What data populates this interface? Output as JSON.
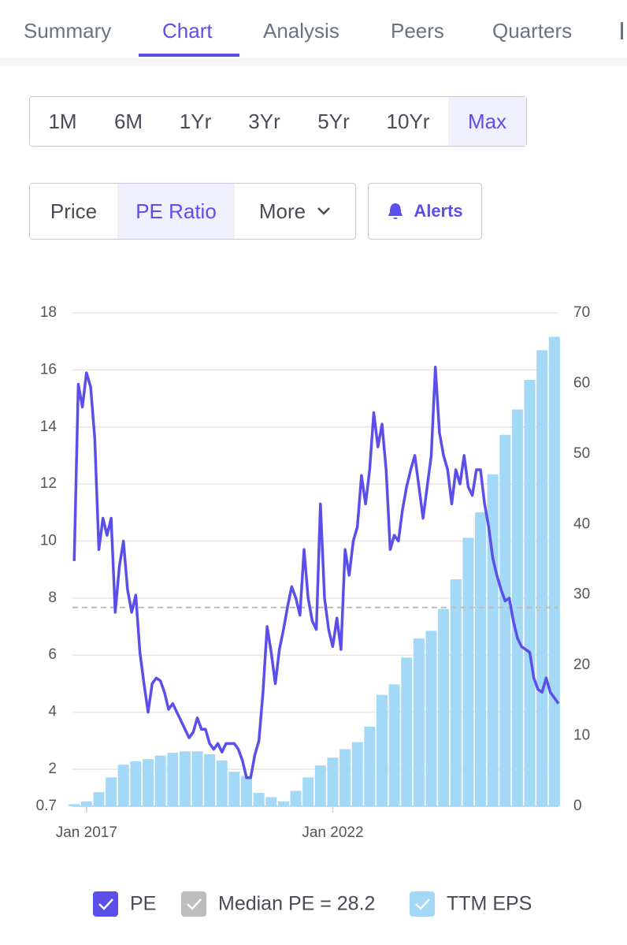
{
  "tabs": [
    "Summary",
    "Chart",
    "Analysis",
    "Peers",
    "Quarters"
  ],
  "ranges": [
    "1M",
    "6M",
    "1Yr",
    "3Yr",
    "5Yr",
    "10Yr",
    "Max"
  ],
  "metrics": [
    "Price",
    "PE Ratio",
    "More"
  ],
  "alerts": "Alerts",
  "chart_data": {
    "type": "combo",
    "xlim": [
      "2016-09",
      "2026-08"
    ],
    "xticks": [
      {
        "value": "2017-01",
        "label": "Jan 2017"
      },
      {
        "value": "2022-01",
        "label": "Jan 2022"
      }
    ],
    "ylim": [
      0.7,
      18
    ],
    "yticks": [
      0.7,
      2,
      4,
      6,
      8,
      10,
      12,
      14,
      16,
      18
    ],
    "y2lim": [
      0,
      70
    ],
    "y2ticks": [
      0,
      10,
      20,
      30,
      40,
      50,
      60,
      70
    ],
    "grid": true,
    "series": [
      {
        "name": "PE",
        "type": "line",
        "color": "#5b4fe9",
        "x": [
          "2016-10",
          "2016-11",
          "2016-12",
          "2017-01",
          "2017-02",
          "2017-03",
          "2017-04",
          "2017-05",
          "2017-06",
          "2017-07",
          "2017-08",
          "2017-09",
          "2017-10",
          "2017-11",
          "2017-12",
          "2018-01",
          "2018-02",
          "2018-03",
          "2018-04",
          "2018-05",
          "2018-06",
          "2018-07",
          "2018-08",
          "2018-09",
          "2018-10",
          "2018-11",
          "2018-12",
          "2019-01",
          "2019-02",
          "2019-03",
          "2019-04",
          "2019-05",
          "2019-06",
          "2019-07",
          "2019-08",
          "2019-09",
          "2019-10",
          "2019-11",
          "2019-12",
          "2020-01",
          "2020-02",
          "2020-03",
          "2020-04",
          "2020-05",
          "2020-06",
          "2020-07",
          "2020-08",
          "2020-09",
          "2020-10",
          "2020-11",
          "2020-12",
          "2021-01",
          "2021-02",
          "2021-03",
          "2021-04",
          "2021-05",
          "2021-06",
          "2021-07",
          "2021-08",
          "2021-09",
          "2021-10",
          "2021-11",
          "2021-12",
          "2022-01",
          "2022-02",
          "2022-03",
          "2022-04",
          "2022-05",
          "2022-06",
          "2022-07",
          "2022-08",
          "2022-09",
          "2022-10",
          "2022-11",
          "2022-12",
          "2023-01",
          "2023-02",
          "2023-03",
          "2023-04",
          "2023-05",
          "2023-06",
          "2023-07",
          "2023-08",
          "2023-09",
          "2023-10",
          "2023-11",
          "2023-12",
          "2024-01",
          "2024-02",
          "2024-03",
          "2024-04",
          "2024-05",
          "2024-06",
          "2024-07",
          "2024-08",
          "2024-09",
          "2024-10",
          "2024-11",
          "2024-12",
          "2025-01",
          "2025-02",
          "2025-03",
          "2025-04",
          "2025-05",
          "2025-06",
          "2025-07",
          "2025-08",
          "2025-09",
          "2025-10",
          "2025-11",
          "2025-12",
          "2026-01",
          "2026-02",
          "2026-03",
          "2026-04",
          "2026-05",
          "2026-06",
          "2026-07",
          "2026-08"
        ],
        "values": [
          9.3,
          15.5,
          14.7,
          15.9,
          15.4,
          13.6,
          9.7,
          10.8,
          10.2,
          10.8,
          7.5,
          9.1,
          10.0,
          8.3,
          7.5,
          8.1,
          6.1,
          5.0,
          4.0,
          5.0,
          5.2,
          5.1,
          4.7,
          4.1,
          4.3,
          4.0,
          3.7,
          3.4,
          3.1,
          3.3,
          3.8,
          3.4,
          3.4,
          2.9,
          2.7,
          2.9,
          2.6,
          2.9,
          2.9,
          2.9,
          2.7,
          2.3,
          1.7,
          1.7,
          2.5,
          3.0,
          4.7,
          7.0,
          6.1,
          5.0,
          6.2,
          6.9,
          7.7,
          8.4,
          8.0,
          7.4,
          9.7,
          8.0,
          7.2,
          6.9,
          11.3,
          8.0,
          6.9,
          6.3,
          7.3,
          6.2,
          9.7,
          8.8,
          10.0,
          10.5,
          12.3,
          11.3,
          12.5,
          14.5,
          13.3,
          14.1,
          12.5,
          9.7,
          10.2,
          10.0,
          11.1,
          11.9,
          12.5,
          13.0,
          11.9,
          10.8,
          11.9,
          13.0,
          16.1,
          13.8,
          13.0,
          12.5,
          11.3,
          12.5,
          12.0,
          13.0,
          11.9,
          11.6,
          12.5,
          12.5,
          11.3,
          10.5,
          9.4,
          8.8,
          8.3,
          7.9,
          8.0,
          7.2,
          6.6,
          6.3,
          6.2,
          6.1,
          5.2,
          4.8,
          4.7,
          5.2,
          4.7,
          4.5,
          4.3
        ]
      },
      {
        "name": "Median PE = 28.2",
        "type": "hline",
        "color": "#bdbdbd",
        "axis": "y2",
        "value": 28.2
      },
      {
        "name": "TTM EPS",
        "type": "bar",
        "color": "#a3d9f6",
        "axis": "y2",
        "x": [
          "2016-10",
          "2017-01",
          "2017-04",
          "2017-07",
          "2017-10",
          "2018-01",
          "2018-04",
          "2018-07",
          "2018-10",
          "2019-01",
          "2019-04",
          "2019-07",
          "2019-10",
          "2020-01",
          "2020-04",
          "2020-07",
          "2020-10",
          "2021-01",
          "2021-04",
          "2021-07",
          "2021-10",
          "2022-01",
          "2022-04",
          "2022-07",
          "2022-10",
          "2023-01",
          "2023-04",
          "2023-07",
          "2023-10",
          "2024-01",
          "2024-04",
          "2024-07",
          "2024-10",
          "2025-01",
          "2025-04",
          "2025-07",
          "2025-10",
          "2026-01",
          "2026-04",
          "2026-07"
        ],
        "values": [
          0.3,
          0.7,
          2,
          4.1,
          5.9,
          6.4,
          6.7,
          7.2,
          7.6,
          7.8,
          7.8,
          7.4,
          6.5,
          4.9,
          4.3,
          1.9,
          1.3,
          0.7,
          2.2,
          4.1,
          5.8,
          6.9,
          8.1,
          9.1,
          11.3,
          15.8,
          17.3,
          21.1,
          23.8,
          24.9,
          28,
          32.2,
          38.1,
          41.7,
          47.1,
          52.7,
          56.3,
          60.5,
          64.7,
          66.6
        ]
      }
    ]
  }
}
